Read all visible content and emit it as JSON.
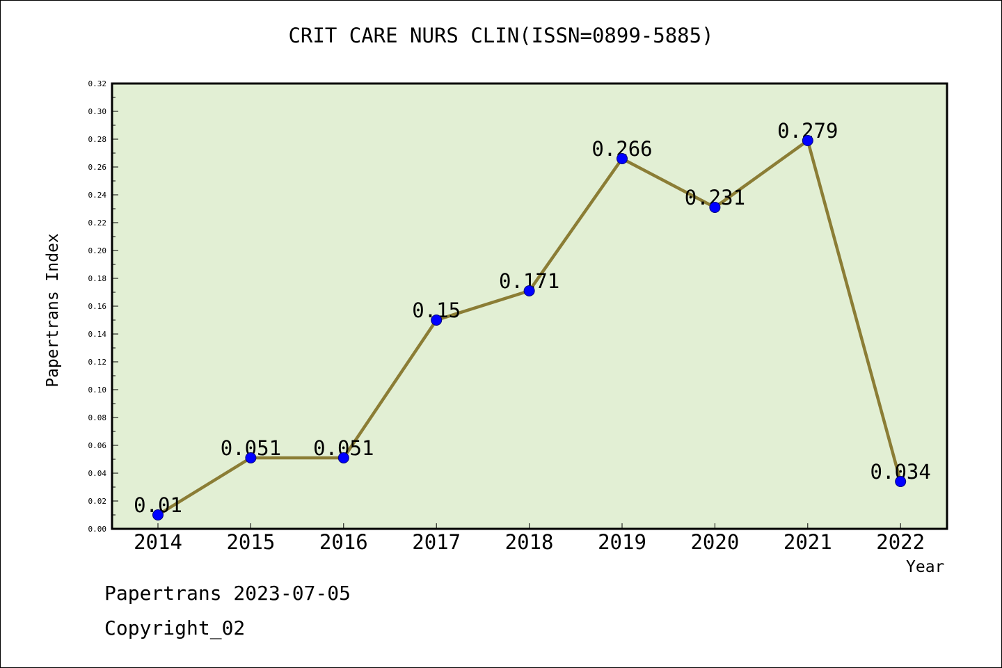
{
  "chart_data": {
    "type": "line",
    "title": "CRIT CARE NURS CLIN(ISSN=0899-5885)",
    "xlabel": "Year",
    "ylabel": "Papertrans Index",
    "categories": [
      "2014",
      "2015",
      "2016",
      "2017",
      "2018",
      "2019",
      "2020",
      "2021",
      "2022"
    ],
    "series": [
      {
        "values": [
          0.01,
          0.051,
          0.051,
          0.15,
          0.171,
          0.266,
          0.231,
          0.279,
          0.034
        ],
        "labels": [
          "0.01",
          "0.051",
          "0.051",
          "0.15",
          "0.171",
          "0.266",
          "0.231",
          "0.279",
          "0.034"
        ]
      }
    ],
    "ylim": [
      0,
      0.32
    ],
    "yticks": [
      "0.00",
      "0.02",
      "0.04",
      "0.06",
      "0.08",
      "0.10",
      "0.12",
      "0.14",
      "0.16",
      "0.18",
      "0.20",
      "0.22",
      "0.24",
      "0.26",
      "0.28",
      "0.30",
      "0.32"
    ],
    "grid": false,
    "colors": {
      "plot_background": "#e2efd4",
      "line": "#8b7d35",
      "marker": "#0000ff"
    }
  },
  "footer": {
    "date_text": "Papertrans 2023-07-05",
    "copyright_text": "Copyright_02"
  }
}
